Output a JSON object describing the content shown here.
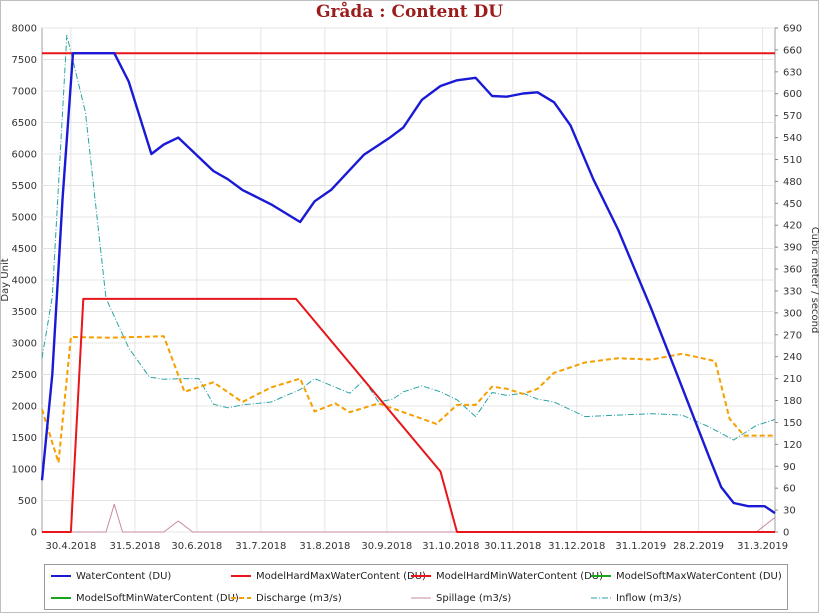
{
  "chart_data": {
    "type": "line",
    "title": "Gråda : Content DU",
    "ylabel_left": "Day Unit",
    "ylabel_right": "Cubic meter / second",
    "ylim_left": [
      0,
      8000
    ],
    "ylim_right": [
      0,
      690
    ],
    "y_ticks_left": [
      "0",
      "500",
      "1000",
      "1500",
      "2000",
      "2500",
      "3000",
      "3500",
      "4000",
      "4500",
      "5000",
      "5500",
      "6000",
      "6500",
      "7000",
      "7500",
      "8000"
    ],
    "y_ticks_right": [
      "0",
      "30",
      "60",
      "90",
      "120",
      "150",
      "180",
      "210",
      "240",
      "270",
      "300",
      "330",
      "360",
      "390",
      "420",
      "450",
      "480",
      "510",
      "540",
      "570",
      "600",
      "630",
      "660",
      "690"
    ],
    "x_range": [
      "2018-04-16",
      "2019-04-06"
    ],
    "x_ticks": [
      {
        "date": "2018-04-30",
        "label": "30.4.2018"
      },
      {
        "date": "2018-05-31",
        "label": "31.5.2018"
      },
      {
        "date": "2018-06-30",
        "label": "30.6.2018"
      },
      {
        "date": "2018-07-31",
        "label": "31.7.2018"
      },
      {
        "date": "2018-08-31",
        "label": "31.8.2018"
      },
      {
        "date": "2018-09-30",
        "label": "30.9.2018"
      },
      {
        "date": "2018-10-31",
        "label": "31.10.2018"
      },
      {
        "date": "2018-11-30",
        "label": "30.11.2018"
      },
      {
        "date": "2018-12-31",
        "label": "31.12.2018"
      },
      {
        "date": "2019-01-31",
        "label": "31.1.2019"
      },
      {
        "date": "2019-02-28",
        "label": "28.2.2019"
      },
      {
        "date": "2019-03-31",
        "label": "31.3.2019"
      }
    ],
    "grid": true,
    "legend_position": "bottom",
    "series": [
      {
        "name": "WaterContent (DU)",
        "axis": "left",
        "color": "#1a1ad6",
        "dash": "solid",
        "width": 2.4,
        "points": [
          [
            "2018-04-16",
            820
          ],
          [
            "2018-04-21",
            2500
          ],
          [
            "2018-04-26",
            5300
          ],
          [
            "2018-05-01",
            7600
          ],
          [
            "2018-05-21",
            7600
          ],
          [
            "2018-05-28",
            7150
          ],
          [
            "2018-06-08",
            6000
          ],
          [
            "2018-06-14",
            6150
          ],
          [
            "2018-06-21",
            6260
          ],
          [
            "2018-07-08",
            5730
          ],
          [
            "2018-07-15",
            5600
          ],
          [
            "2018-07-22",
            5430
          ],
          [
            "2018-08-05",
            5200
          ],
          [
            "2018-08-19",
            4920
          ],
          [
            "2018-08-26",
            5250
          ],
          [
            "2018-09-03",
            5430
          ],
          [
            "2018-09-19",
            5990
          ],
          [
            "2018-10-01",
            6250
          ],
          [
            "2018-10-08",
            6420
          ],
          [
            "2018-10-17",
            6860
          ],
          [
            "2018-10-26",
            7080
          ],
          [
            "2018-11-03",
            7170
          ],
          [
            "2018-11-12",
            7210
          ],
          [
            "2018-11-20",
            6920
          ],
          [
            "2018-11-27",
            6910
          ],
          [
            "2018-12-05",
            6960
          ],
          [
            "2018-12-12",
            6980
          ],
          [
            "2018-12-20",
            6820
          ],
          [
            "2018-12-28",
            6450
          ],
          [
            "2019-01-08",
            5600
          ],
          [
            "2019-01-20",
            4800
          ],
          [
            "2019-02-05",
            3550
          ],
          [
            "2019-02-17",
            2550
          ],
          [
            "2019-03-05",
            1200
          ],
          [
            "2019-03-11",
            710
          ],
          [
            "2019-03-17",
            460
          ],
          [
            "2019-03-24",
            410
          ],
          [
            "2019-04-01",
            410
          ],
          [
            "2019-04-06",
            300
          ]
        ]
      },
      {
        "name": "ModelHardMaxWaterContent (DU)",
        "axis": "left",
        "color": "#e8151b",
        "dash": "solid",
        "width": 2,
        "points": [
          [
            "2018-04-16",
            7600
          ],
          [
            "2019-04-06",
            7600
          ]
        ]
      },
      {
        "name": "ModelHardMinWaterContent (DU)",
        "axis": "left",
        "color": "#e8151b",
        "dash": "solid",
        "width": 2,
        "points": [
          [
            "2018-04-16",
            0
          ],
          [
            "2018-04-30",
            0
          ],
          [
            "2018-05-06",
            3700
          ],
          [
            "2018-08-17",
            3700
          ],
          [
            "2018-10-26",
            960
          ],
          [
            "2018-11-03",
            0
          ],
          [
            "2019-04-06",
            0
          ]
        ]
      },
      {
        "name": "ModelSoftMaxWaterContent (DU)",
        "axis": "left",
        "color": "#1aa51a",
        "dash": "solid",
        "width": 2,
        "points": []
      },
      {
        "name": "ModelSoftMinWaterContent (DU)",
        "axis": "left",
        "color": "#1aa51a",
        "dash": "solid",
        "width": 2,
        "points": []
      },
      {
        "name": "Discharge (m3/s)",
        "axis": "right",
        "color": "#f5a000",
        "dash": "5,3",
        "width": 2,
        "points": [
          [
            "2018-04-16",
            168
          ],
          [
            "2018-04-24",
            95
          ],
          [
            "2018-04-30",
            267
          ],
          [
            "2018-05-19",
            266
          ],
          [
            "2018-06-14",
            268
          ],
          [
            "2018-06-24",
            192
          ],
          [
            "2018-07-08",
            205
          ],
          [
            "2018-07-22",
            178
          ],
          [
            "2018-08-05",
            198
          ],
          [
            "2018-08-19",
            210
          ],
          [
            "2018-08-26",
            165
          ],
          [
            "2018-09-05",
            176
          ],
          [
            "2018-09-12",
            164
          ],
          [
            "2018-09-26",
            176
          ],
          [
            "2018-10-24",
            148
          ],
          [
            "2018-11-03",
            174
          ],
          [
            "2018-11-12",
            174
          ],
          [
            "2018-11-20",
            199
          ],
          [
            "2018-11-27",
            196
          ],
          [
            "2018-12-05",
            189
          ],
          [
            "2018-12-12",
            196
          ],
          [
            "2018-12-20",
            218
          ],
          [
            "2019-01-04",
            232
          ],
          [
            "2019-01-20",
            238
          ],
          [
            "2019-02-05",
            236
          ],
          [
            "2019-02-20",
            244
          ],
          [
            "2019-03-08",
            234
          ],
          [
            "2019-03-15",
            155
          ],
          [
            "2019-03-22",
            132
          ],
          [
            "2019-04-06",
            132
          ]
        ]
      },
      {
        "name": "Spillage (m3/s)",
        "axis": "right",
        "color": "#c88aa0",
        "dash": "solid",
        "width": 1,
        "points": [
          [
            "2018-04-16",
            0
          ],
          [
            "2018-05-17",
            0
          ],
          [
            "2018-05-21",
            38
          ],
          [
            "2018-05-25",
            0
          ],
          [
            "2018-06-14",
            0
          ],
          [
            "2018-06-21",
            15
          ],
          [
            "2018-06-28",
            0
          ],
          [
            "2019-03-28",
            0
          ],
          [
            "2019-04-06",
            20
          ]
        ]
      },
      {
        "name": "Inflow (m3/s)",
        "axis": "right",
        "color": "#2aa3a3",
        "dash": "6,2,1,2",
        "width": 1,
        "points": [
          [
            "2018-04-16",
            238
          ],
          [
            "2018-04-21",
            322
          ],
          [
            "2018-04-28",
            680
          ],
          [
            "2018-05-07",
            575
          ],
          [
            "2018-05-17",
            320
          ],
          [
            "2018-05-28",
            252
          ],
          [
            "2018-06-07",
            212
          ],
          [
            "2018-06-14",
            209
          ],
          [
            "2018-06-24",
            210
          ],
          [
            "2018-07-01",
            210
          ],
          [
            "2018-07-08",
            175
          ],
          [
            "2018-07-15",
            170
          ],
          [
            "2018-07-22",
            174
          ],
          [
            "2018-08-05",
            178
          ],
          [
            "2018-08-19",
            195
          ],
          [
            "2018-08-26",
            210
          ],
          [
            "2018-09-12",
            190
          ],
          [
            "2018-09-19",
            208
          ],
          [
            "2018-09-26",
            178
          ],
          [
            "2018-10-03",
            182
          ],
          [
            "2018-10-08",
            192
          ],
          [
            "2018-10-17",
            200
          ],
          [
            "2018-10-26",
            192
          ],
          [
            "2018-11-03",
            181
          ],
          [
            "2018-11-12",
            158
          ],
          [
            "2018-11-20",
            191
          ],
          [
            "2018-11-27",
            187
          ],
          [
            "2018-12-05",
            190
          ],
          [
            "2018-12-12",
            182
          ],
          [
            "2018-12-20",
            178
          ],
          [
            "2019-01-04",
            158
          ],
          [
            "2019-01-20",
            160
          ],
          [
            "2019-02-05",
            162
          ],
          [
            "2019-02-20",
            160
          ],
          [
            "2019-03-05",
            144
          ],
          [
            "2019-03-11",
            135
          ],
          [
            "2019-03-17",
            126
          ],
          [
            "2019-03-28",
            146
          ],
          [
            "2019-04-06",
            154
          ]
        ]
      }
    ]
  }
}
